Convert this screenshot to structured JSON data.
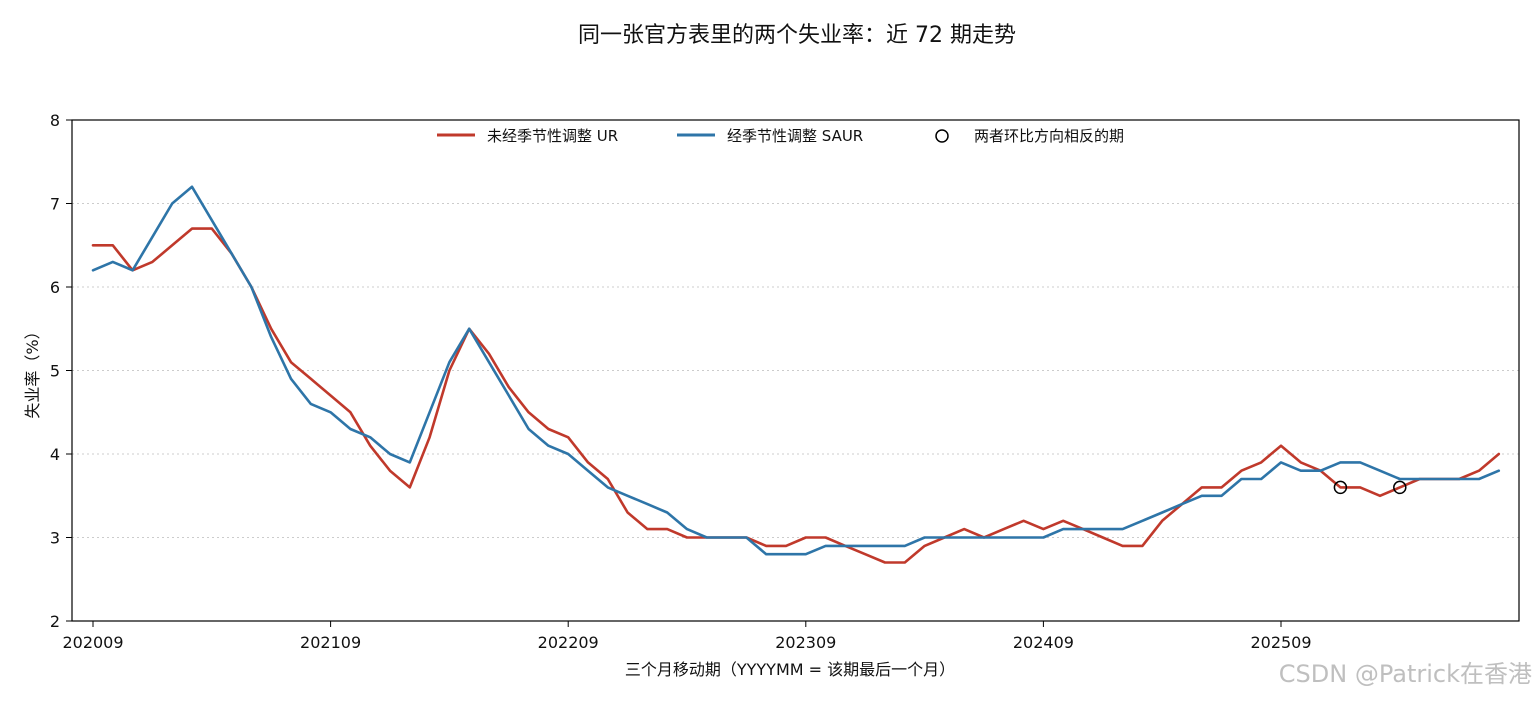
{
  "chart_data": {
    "type": "line",
    "title": "同一张官方表里的两个失业率：近 72 期走势",
    "xlabel": "三个月移动期（YYYYMM = 该期最后一个月）",
    "ylabel": "失业率（%）",
    "ylim": [
      2,
      8
    ],
    "yticks": [
      "2",
      "3",
      "4",
      "5",
      "6",
      "7",
      "8"
    ],
    "grid": "horizontal-dotted",
    "legend_position": "top-center",
    "xtick_labels": [
      "202009",
      "202109",
      "202209",
      "202309",
      "202409",
      "202509"
    ],
    "x_start": "202009",
    "x_end": "202608",
    "series": [
      {
        "name": "未经季节性调整 UR",
        "color": "#c0392b",
        "values": [
          6.5,
          6.5,
          6.2,
          6.3,
          6.5,
          6.7,
          6.7,
          6.4,
          6.0,
          5.5,
          5.1,
          4.9,
          4.7,
          4.5,
          4.1,
          3.8,
          3.6,
          4.2,
          5.0,
          5.5,
          5.2,
          4.8,
          4.5,
          4.3,
          4.2,
          3.9,
          3.7,
          3.3,
          3.1,
          3.1,
          3.0,
          3.0,
          3.0,
          3.0,
          2.9,
          2.9,
          3.0,
          3.0,
          2.9,
          2.8,
          2.7,
          2.7,
          2.9,
          3.0,
          3.1,
          3.0,
          3.1,
          3.2,
          3.1,
          3.2,
          3.1,
          3.0,
          2.9,
          2.9,
          3.2,
          3.4,
          3.6,
          3.6,
          3.8,
          3.9,
          4.1,
          3.9,
          3.8,
          3.6,
          3.6,
          3.5,
          3.6,
          3.7,
          3.7,
          3.7,
          3.8,
          4.0
        ]
      },
      {
        "name": "经季节性调整 SAUR",
        "color": "#2e75a8",
        "values": [
          6.2,
          6.3,
          6.2,
          6.6,
          7.0,
          7.2,
          6.8,
          6.4,
          6.0,
          5.4,
          4.9,
          4.6,
          4.5,
          4.3,
          4.2,
          4.0,
          3.9,
          4.5,
          5.1,
          5.5,
          5.1,
          4.7,
          4.3,
          4.1,
          4.0,
          3.8,
          3.6,
          3.5,
          3.4,
          3.3,
          3.1,
          3.0,
          3.0,
          3.0,
          2.8,
          2.8,
          2.8,
          2.9,
          2.9,
          2.9,
          2.9,
          2.9,
          3.0,
          3.0,
          3.0,
          3.0,
          3.0,
          3.0,
          3.0,
          3.1,
          3.1,
          3.1,
          3.1,
          3.2,
          3.3,
          3.4,
          3.5,
          3.5,
          3.7,
          3.7,
          3.9,
          3.8,
          3.8,
          3.9,
          3.9,
          3.8,
          3.7,
          3.7,
          3.7,
          3.7,
          3.7,
          3.8
        ]
      }
    ],
    "markers": {
      "name": "两者环比方向相反的期",
      "points": [
        {
          "x": "202512",
          "y": 3.6
        },
        {
          "x": "202603",
          "y": 3.6
        }
      ]
    }
  },
  "watermark": "CSDN @Patrick在香港"
}
